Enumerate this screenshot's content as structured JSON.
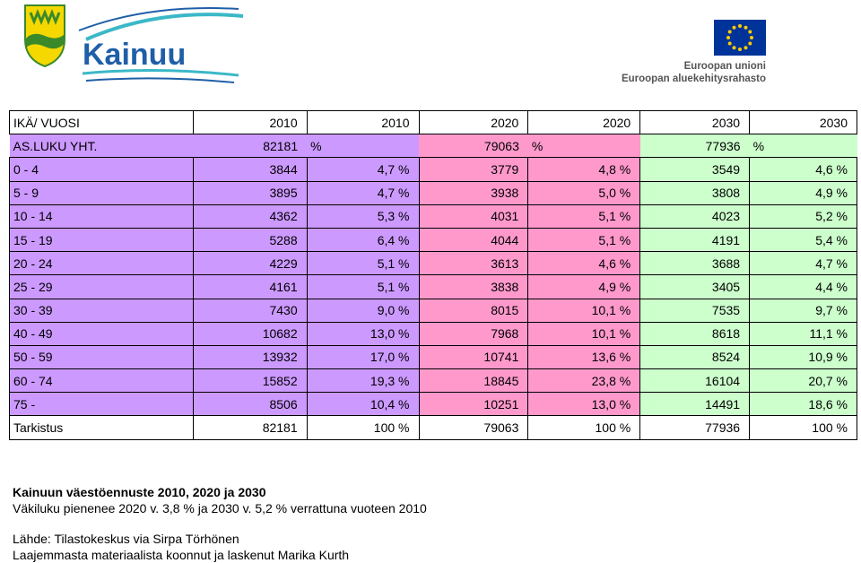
{
  "logos": {
    "left_brand": "Kainuu",
    "eu_line1": "Euroopan unioni",
    "eu_line2": "Euroopan aluekehitysrahasto"
  },
  "colors": {
    "purple": "#cc99ff",
    "pink": "#ff99cc",
    "green": "#ccffcc",
    "kainuu_blue": "#1f5fa8",
    "kainuu_teal": "#3bb8c8",
    "eu_blue": "#003399",
    "eu_star": "#ffcc00"
  },
  "table": {
    "header": [
      "IKÄ/ VUOSI",
      "2010",
      "2010",
      "2020",
      "2020",
      "2030",
      "2030"
    ],
    "total_row": [
      "AS.LUKU YHT.",
      "82181",
      "%",
      "79063",
      "%",
      "77936",
      "%"
    ],
    "rows": [
      [
        "0 - 4",
        "3844",
        "4,7 %",
        "3779",
        "4,8 %",
        "3549",
        "4,6 %"
      ],
      [
        "5 - 9",
        "3895",
        "4,7 %",
        "3938",
        "5,0 %",
        "3808",
        "4,9 %"
      ],
      [
        "10 - 14",
        "4362",
        "5,3 %",
        "4031",
        "5,1 %",
        "4023",
        "5,2 %"
      ],
      [
        "15 - 19",
        "5288",
        "6,4 %",
        "4044",
        "5,1 %",
        "4191",
        "5,4 %"
      ],
      [
        "20 - 24",
        "4229",
        "5,1 %",
        "3613",
        "4,6 %",
        "3688",
        "4,7 %"
      ],
      [
        "25 - 29",
        "4161",
        "5,1 %",
        "3838",
        "4,9 %",
        "3405",
        "4,4 %"
      ],
      [
        "30 - 39",
        "7430",
        "9,0 %",
        "8015",
        "10,1 %",
        "7535",
        "9,7 %"
      ],
      [
        "40 - 49",
        "10682",
        "13,0 %",
        "7968",
        "10,1 %",
        "8618",
        "11,1 %"
      ],
      [
        "50 - 59",
        "13932",
        "17,0 %",
        "10741",
        "13,6 %",
        "8524",
        "10,9 %"
      ],
      [
        "60 - 74",
        "15852",
        "19,3 %",
        "18845",
        "23,8 %",
        "16104",
        "20,7 %"
      ],
      [
        "75 -",
        "8506",
        "10,4 %",
        "10251",
        "13,0 %",
        "14491",
        "18,6 %"
      ]
    ],
    "check_row": [
      "Tarkistus",
      "82181",
      "100 %",
      "79063",
      "100 %",
      "77936",
      "100 %"
    ]
  },
  "notes": {
    "title": "Kainuun väestöennuste 2010, 2020 ja 2030",
    "line2": "Väkiluku pienenee 2020 v. 3,8 % ja 2030 v. 5,2 % verrattuna vuoteen 2010",
    "source1": "Lähde: Tilastokeskus via Sirpa Törhönen",
    "source2": "Laajemmasta materiaalista koonnut ja laskenut Marika Kurth"
  }
}
